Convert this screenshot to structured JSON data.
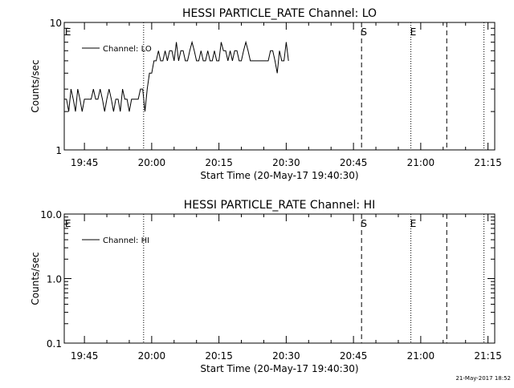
{
  "footer": {
    "timestamp": "21-May-2017 18:52"
  },
  "chart_data": [
    {
      "type": "line",
      "title": "HESSI PARTICLE_RATE Channel: LO",
      "xlabel": "Start Time (20-May-17 19:40:30)",
      "ylabel": "Counts/sec",
      "x_unit": "minutes after 19:40:30",
      "xlim": [
        0,
        96
      ],
      "ylim": [
        1,
        10
      ],
      "yscale": "log",
      "grid": false,
      "legend": {
        "position": "top-left",
        "entries": [
          "Channel: LO"
        ]
      },
      "x_ticks": [
        {
          "x": 4.5,
          "label": "19:45"
        },
        {
          "x": 19.5,
          "label": "20:00"
        },
        {
          "x": 34.5,
          "label": "20:15"
        },
        {
          "x": 49.5,
          "label": "20:30"
        },
        {
          "x": 64.5,
          "label": "20:45"
        },
        {
          "x": 79.5,
          "label": "21:00"
        },
        {
          "x": 94.5,
          "label": "21:15"
        }
      ],
      "y_ticks": [
        {
          "y": 1,
          "label": "1"
        },
        {
          "y": 10,
          "label": "10"
        }
      ],
      "markers": [
        {
          "label": "E",
          "x": 0.3
        },
        {
          "label": "S",
          "x": 66.3
        },
        {
          "label": "E",
          "x": 77.3
        }
      ],
      "vlines": [
        {
          "x": 17.7,
          "style": "dotted"
        },
        {
          "x": 66.3,
          "style": "dashed"
        },
        {
          "x": 77.3,
          "style": "dotted"
        },
        {
          "x": 85.3,
          "style": "dashed"
        },
        {
          "x": 93.6,
          "style": "dotted"
        }
      ],
      "series": [
        {
          "name": "Channel: LO",
          "x": [
            0,
            0.5,
            1,
            1.5,
            2,
            2.5,
            3,
            3.5,
            4,
            4.5,
            5,
            5.5,
            6,
            6.5,
            7,
            7.5,
            8,
            8.5,
            9,
            9.5,
            10,
            10.5,
            11,
            11.5,
            12,
            12.5,
            13,
            13.5,
            14,
            14.5,
            15,
            15.5,
            16,
            16.5,
            17,
            17.5,
            18,
            18.5,
            19,
            19.5,
            20,
            20.5,
            21,
            21.5,
            22,
            22.5,
            23,
            23.5,
            24,
            24.5,
            25,
            25.5,
            26,
            26.5,
            27,
            27.5,
            28,
            28.5,
            29,
            29.5,
            30,
            30.5,
            31,
            31.5,
            32,
            32.5,
            33,
            33.5,
            34,
            34.5,
            35,
            35.5,
            36,
            36.5,
            37,
            37.5,
            38,
            38.5,
            39,
            39.5,
            40,
            40.5,
            41,
            41.5,
            42,
            42.5,
            43,
            43.5,
            44,
            44.5,
            45,
            45.5,
            46,
            46.5,
            47,
            47.5,
            48,
            48.5,
            49,
            49.5,
            50
          ],
          "y": [
            2.5,
            2.5,
            2,
            3,
            2.5,
            2,
            3,
            2.5,
            2,
            2.5,
            2.5,
            2.5,
            2.5,
            3,
            2.5,
            2.5,
            3,
            2.5,
            2,
            2.5,
            3,
            2.5,
            2,
            2.5,
            2.5,
            2,
            3,
            2.5,
            2.5,
            2,
            2.5,
            2.5,
            2.5,
            2.5,
            3,
            3,
            2,
            3,
            4,
            4,
            5,
            5,
            6,
            5,
            5,
            6,
            5,
            6,
            6,
            5,
            7,
            5,
            6,
            6,
            5,
            5,
            6,
            7,
            6,
            5,
            5,
            6,
            5,
            5,
            6,
            5,
            5,
            6,
            5,
            5,
            7,
            6,
            6,
            5,
            6,
            5,
            6,
            6,
            5,
            5,
            6,
            7,
            6,
            5,
            5,
            5,
            5,
            5,
            5,
            5,
            5,
            5,
            6,
            6,
            5,
            4,
            6,
            5,
            5,
            7,
            5
          ]
        }
      ]
    },
    {
      "type": "line",
      "title": "HESSI PARTICLE_RATE Channel: HI",
      "xlabel": "Start Time (20-May-17 19:40:30)",
      "ylabel": "Counts/sec",
      "x_unit": "minutes after 19:40:30",
      "xlim": [
        0,
        96
      ],
      "ylim": [
        0.1,
        10
      ],
      "yscale": "log",
      "grid": false,
      "legend": {
        "position": "top-left",
        "entries": [
          "Channel: HI"
        ]
      },
      "x_ticks": [
        {
          "x": 4.5,
          "label": "19:45"
        },
        {
          "x": 19.5,
          "label": "20:00"
        },
        {
          "x": 34.5,
          "label": "20:15"
        },
        {
          "x": 49.5,
          "label": "20:30"
        },
        {
          "x": 64.5,
          "label": "20:45"
        },
        {
          "x": 79.5,
          "label": "21:00"
        },
        {
          "x": 94.5,
          "label": "21:15"
        }
      ],
      "y_ticks": [
        {
          "y": 0.1,
          "label": "0.1"
        },
        {
          "y": 1,
          "label": "1.0"
        },
        {
          "y": 10,
          "label": "10.0"
        }
      ],
      "markers": [
        {
          "label": "E",
          "x": 0.3
        },
        {
          "label": "S",
          "x": 66.3
        },
        {
          "label": "E",
          "x": 77.3
        }
      ],
      "vlines": [
        {
          "x": 17.7,
          "style": "dotted"
        },
        {
          "x": 66.3,
          "style": "dashed"
        },
        {
          "x": 77.3,
          "style": "dotted"
        },
        {
          "x": 85.3,
          "style": "dashed"
        },
        {
          "x": 93.6,
          "style": "dotted"
        }
      ],
      "series": [
        {
          "name": "Channel: HI",
          "x": [],
          "y": []
        }
      ]
    }
  ]
}
